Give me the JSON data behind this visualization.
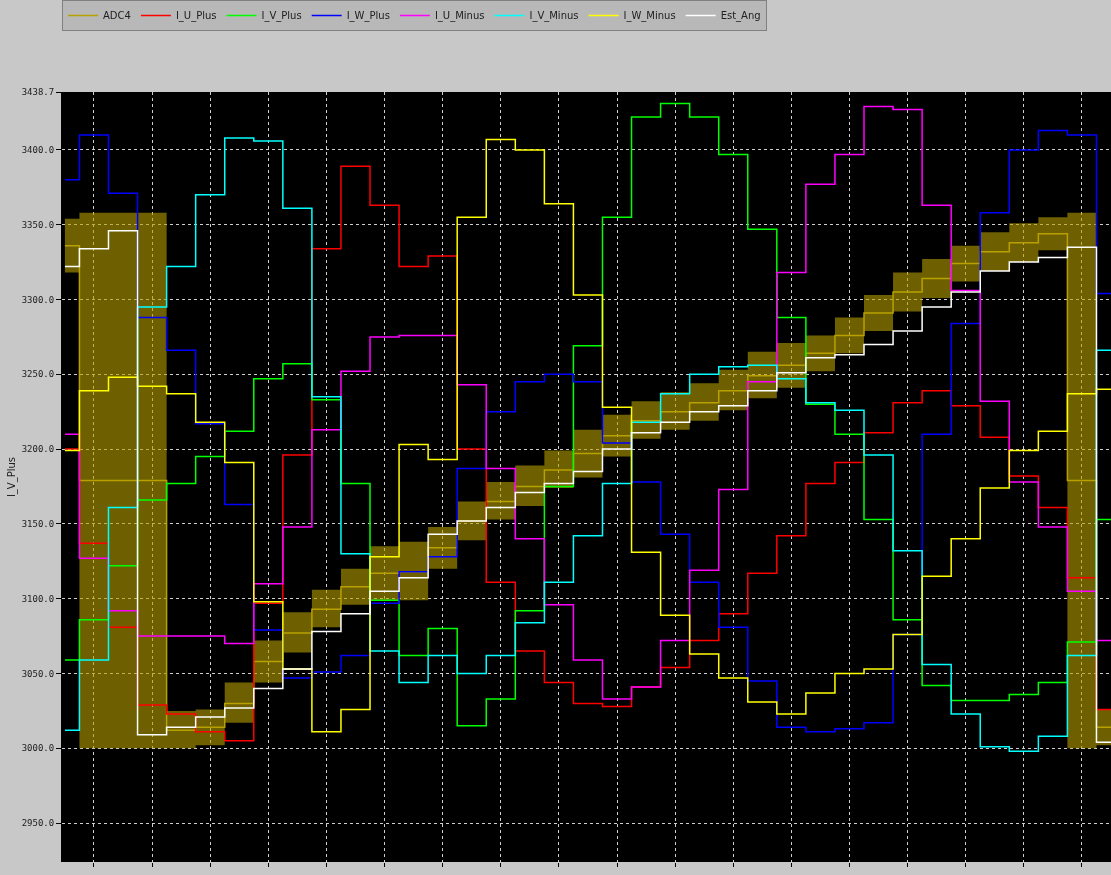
{
  "chart_data": {
    "type": "step",
    "ylabel": "I_V_Plus",
    "categories": [
      null,
      null,
      null,
      null,
      null,
      null,
      null,
      null,
      null,
      null,
      null,
      null,
      null,
      null,
      null,
      null,
      null,
      null,
      null,
      null,
      null,
      null,
      null,
      null,
      null,
      null,
      null,
      null,
      null,
      null,
      null,
      null,
      null,
      null,
      null,
      null,
      null
    ],
    "ylim": [
      2924,
      3438.7
    ],
    "yticks": [
      {
        "value": 2950,
        "label": "2950.0"
      },
      {
        "value": 3000,
        "label": "3000.0"
      },
      {
        "value": 3050,
        "label": "3050.0"
      },
      {
        "value": 3100,
        "label": "3100.0"
      },
      {
        "value": 3150,
        "label": "3150.0"
      },
      {
        "value": 3200,
        "label": "3200.0"
      },
      {
        "value": 3250,
        "label": "3250.0"
      },
      {
        "value": 3300,
        "label": "3300.0"
      },
      {
        "value": 3350,
        "label": "3350.0"
      },
      {
        "value": 3400,
        "label": "3400.0"
      },
      3438.7
    ],
    "grid": true,
    "legend": "top",
    "series": [
      {
        "name": "ADC4",
        "color": "#b8a000",
        "values": [
          3336,
          3179,
          3179,
          3179,
          3012,
          3014,
          3030,
          3058,
          3077,
          3093,
          3108,
          3117,
          3118,
          3134,
          3152,
          3165,
          3175,
          3186,
          3197,
          3209,
          3219,
          3225,
          3231,
          3239,
          3249,
          3256,
          3264,
          3276,
          3291,
          3305,
          3314,
          3324,
          3332,
          3338,
          3344,
          3179,
          3014
        ],
        "lower": [
          3318,
          3000,
          3000,
          3000,
          3000,
          3002,
          3017,
          3044,
          3064,
          3081,
          3096,
          3099,
          3099,
          3120,
          3139,
          3153,
          3162,
          3174,
          3181,
          3195,
          3207,
          3213,
          3219,
          3226,
          3234,
          3241,
          3252,
          3264,
          3279,
          3292,
          3301,
          3312,
          3319,
          3325,
          3333,
          3000,
          3002
        ],
        "upper": [
          3354,
          3358,
          3358,
          3358,
          3025,
          3026,
          3044,
          3072,
          3091,
          3106,
          3120,
          3135,
          3138,
          3148,
          3165,
          3178,
          3189,
          3199,
          3213,
          3223,
          3232,
          3238,
          3244,
          3253,
          3265,
          3271,
          3276,
          3288,
          3303,
          3318,
          3327,
          3336,
          3345,
          3351,
          3355,
          3358,
          3026
        ]
      },
      {
        "name": "I_U_Plus",
        "color": "#ff0000",
        "values": [
          3200,
          3137,
          3081,
          3029,
          3023,
          3011,
          3005,
          3097,
          3196,
          3334,
          3389,
          3363,
          3322,
          3329,
          3200,
          3111,
          3065,
          3044,
          3030,
          3028,
          3041,
          3054,
          3072,
          3090,
          3117,
          3142,
          3177,
          3191,
          3211,
          3231,
          3239,
          3229,
          3208,
          3182,
          3161,
          3114,
          3026
        ]
      },
      {
        "name": "I_V_Plus",
        "color": "#00ff00",
        "values": [
          3059,
          3086,
          3122,
          3166,
          3177,
          3195,
          3212,
          3247,
          3257,
          3233,
          3177,
          3099,
          3062,
          3080,
          3015,
          3033,
          3092,
          3175,
          3269,
          3355,
          3422,
          3431,
          3422,
          3397,
          3347,
          3288,
          3230,
          3210,
          3153,
          3086,
          3042,
          3032,
          3032,
          3036,
          3044,
          3071,
          3153
        ]
      },
      {
        "name": "I_W_Plus",
        "color": "#0000ff",
        "values": [
          3380,
          3410,
          3371,
          3288,
          3266,
          3217,
          3163,
          3079,
          3047,
          3051,
          3062,
          3097,
          3118,
          3128,
          3187,
          3225,
          3245,
          3250,
          3245,
          3204,
          3178,
          3143,
          3111,
          3081,
          3045,
          3014,
          3011,
          3013,
          3017,
          3076,
          3210,
          3284,
          3358,
          3400,
          3413,
          3410,
          3304
        ]
      },
      {
        "name": "I_U_Minus",
        "color": "#ff00ff",
        "values": [
          3210,
          3127,
          3092,
          3075,
          3075,
          3075,
          3070,
          3110,
          3148,
          3213,
          3252,
          3275,
          3276,
          3276,
          3243,
          3187,
          3140,
          3096,
          3059,
          3033,
          3041,
          3072,
          3119,
          3173,
          3245,
          3318,
          3377,
          3397,
          3429,
          3427,
          3363,
          3306,
          3232,
          3178,
          3148,
          3105,
          3072
        ]
      },
      {
        "name": "I_V_Minus",
        "color": "#00ffff",
        "values": [
          3012,
          3059,
          3161,
          3295,
          3322,
          3370,
          3408,
          3406,
          3361,
          3235,
          3130,
          3065,
          3044,
          3062,
          3050,
          3062,
          3084,
          3111,
          3142,
          3177,
          3218,
          3237,
          3250,
          3255,
          3256,
          3247,
          3231,
          3226,
          3196,
          3132,
          3056,
          3023,
          3001,
          2998,
          3008,
          3062,
          3266
        ]
      },
      {
        "name": "I_W_Minus",
        "color": "#ffff00",
        "values": [
          3199,
          3239,
          3248,
          3242,
          3237,
          3218,
          3191,
          3098,
          3053,
          3011,
          3026,
          3128,
          3203,
          3193,
          3355,
          3407,
          3400,
          3364,
          3303,
          3228,
          3131,
          3089,
          3063,
          3047,
          3031,
          3023,
          3037,
          3050,
          3053,
          3076,
          3115,
          3140,
          3174,
          3199,
          3212,
          3237,
          3240
        ]
      },
      {
        "name": "Est_Ang",
        "color": "#ffffff",
        "values": [
          3322,
          3334,
          3346,
          3009,
          3014,
          3021,
          3027,
          3040,
          3053,
          3078,
          3090,
          3105,
          3114,
          3143,
          3152,
          3161,
          3171,
          3177,
          3185,
          3200,
          3211,
          3218,
          3225,
          3229,
          3239,
          3251,
          3261,
          3263,
          3270,
          3279,
          3295,
          3305,
          3319,
          3325,
          3328,
          3335,
          3004
        ]
      }
    ]
  }
}
